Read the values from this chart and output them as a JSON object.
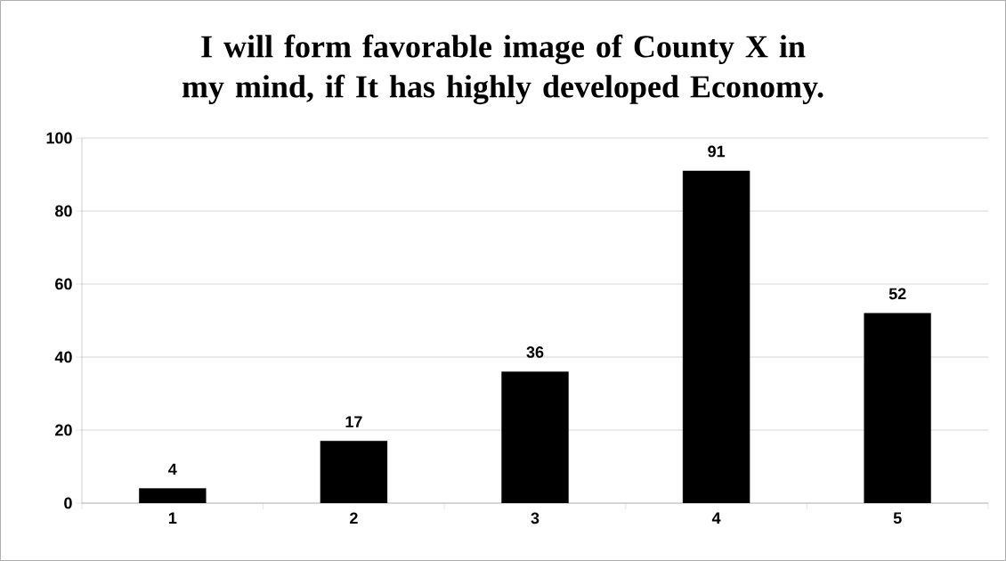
{
  "chart_data": {
    "type": "bar",
    "title": "I will form favorable image of County X in my mind, if It has highly developed Economy.",
    "categories": [
      "1",
      "2",
      "3",
      "4",
      "5"
    ],
    "values": [
      4,
      17,
      36,
      91,
      52
    ],
    "color": "#000000",
    "ylim": [
      0,
      100
    ],
    "yticks": [
      0,
      20,
      40,
      60,
      80,
      100
    ],
    "grid": "y",
    "data_labels": true
  }
}
